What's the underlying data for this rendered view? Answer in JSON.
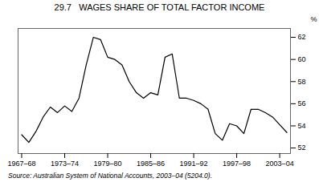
{
  "chart_data": {
    "type": "line",
    "title": "29.7   WAGES SHARE OF TOTAL FACTOR INCOME",
    "ylabel": "%",
    "source": "Source: Australian System of National Accounts, 2003–04 (5204.0).",
    "categories": [
      "1967–68",
      null,
      null,
      null,
      null,
      null,
      "1973–74",
      null,
      null,
      null,
      null,
      null,
      "1979–80",
      null,
      null,
      null,
      null,
      null,
      "1985–86",
      null,
      null,
      null,
      null,
      null,
      "1991–92",
      null,
      null,
      null,
      null,
      null,
      "1997–98",
      null,
      null,
      null,
      null,
      null,
      "2003–04",
      null
    ],
    "values": [
      53.2,
      52.5,
      53.5,
      54.8,
      55.7,
      55.2,
      55.8,
      55.3,
      56.5,
      59.5,
      62.0,
      61.8,
      60.2,
      60.0,
      59.5,
      58.0,
      57.0,
      56.5,
      57.0,
      56.8,
      60.2,
      60.5,
      56.5,
      56.5,
      56.3,
      56.0,
      55.5,
      53.3,
      52.7,
      54.2,
      54.0,
      53.3,
      55.5,
      55.5,
      55.2,
      54.8,
      54.1,
      53.4
    ],
    "color": "#000000",
    "ylim": [
      51.5,
      62.8
    ],
    "yticks": [
      52,
      54,
      56,
      58,
      60,
      62
    ],
    "grid": false
  }
}
